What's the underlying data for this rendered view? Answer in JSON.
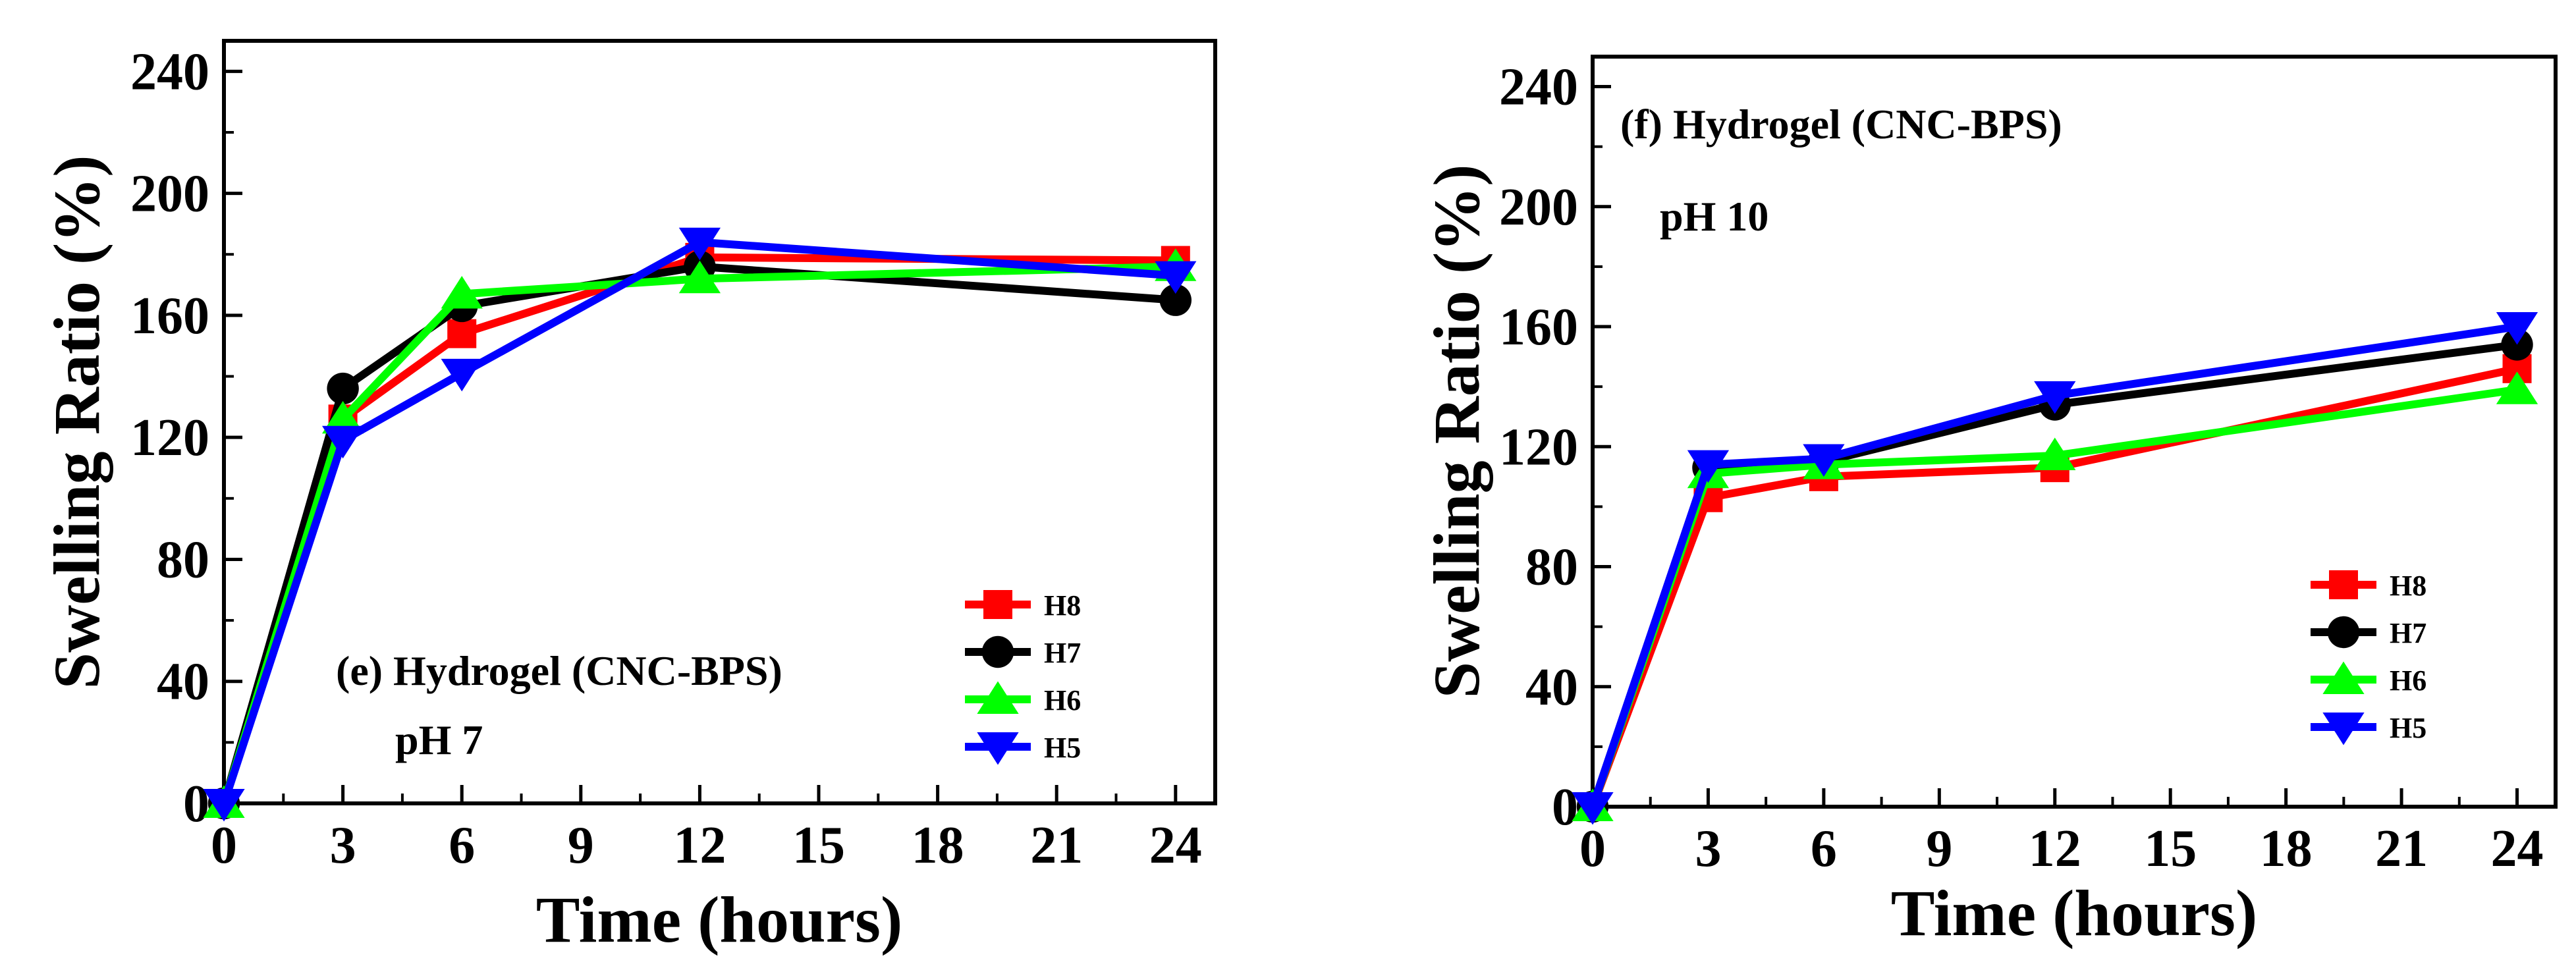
{
  "chart_data": [
    {
      "type": "line",
      "panel": "e",
      "annotation": "(e) Hydrogel (CNC-BPS)",
      "condition": "pH 7",
      "xlabel": "Time (hours)",
      "ylabel": "Swelling Ratio (%)",
      "xlim": [
        0,
        25
      ],
      "ylim": [
        0,
        250
      ],
      "xticks": [
        0,
        3,
        6,
        9,
        12,
        15,
        18,
        21,
        24
      ],
      "yticks": [
        0,
        40,
        80,
        120,
        160,
        200,
        240
      ],
      "legend_position": "bottom-right",
      "x": [
        0,
        3,
        6,
        12,
        24
      ],
      "series": [
        {
          "name": "H8",
          "color": "#ff0000",
          "marker": "square",
          "values": [
            0,
            126,
            154,
            179,
            178
          ]
        },
        {
          "name": "H7",
          "color": "#000000",
          "marker": "circle",
          "values": [
            0,
            136,
            163,
            176,
            165
          ]
        },
        {
          "name": "H6",
          "color": "#00ff00",
          "marker": "triangle-up",
          "values": [
            0,
            126,
            167,
            172,
            176
          ]
        },
        {
          "name": "H5",
          "color": "#0000ff",
          "marker": "triangle-down",
          "values": [
            0,
            119,
            141,
            184,
            173
          ]
        }
      ]
    },
    {
      "type": "line",
      "panel": "f",
      "annotation": "(f) Hydrogel (CNC-BPS)",
      "condition": "pH 10",
      "xlabel": "Time (hours)",
      "ylabel": "Swelling Ratio (%)",
      "xlim": [
        0,
        25
      ],
      "ylim": [
        0,
        250
      ],
      "xticks": [
        0,
        3,
        6,
        9,
        12,
        15,
        18,
        21,
        24
      ],
      "yticks": [
        0,
        40,
        80,
        120,
        160,
        200,
        240
      ],
      "legend_position": "bottom-right",
      "x": [
        0,
        3,
        6,
        12,
        24
      ],
      "series": [
        {
          "name": "H8",
          "color": "#ff0000",
          "marker": "square",
          "values": [
            0,
            103,
            110,
            113,
            146
          ]
        },
        {
          "name": "H7",
          "color": "#000000",
          "marker": "circle",
          "values": [
            0,
            113,
            115,
            134,
            154
          ]
        },
        {
          "name": "H6",
          "color": "#00ff00",
          "marker": "triangle-up",
          "values": [
            0,
            111,
            114,
            117,
            139
          ]
        },
        {
          "name": "H5",
          "color": "#0000ff",
          "marker": "triangle-down",
          "values": [
            0,
            114,
            116,
            137,
            160
          ]
        }
      ]
    }
  ]
}
